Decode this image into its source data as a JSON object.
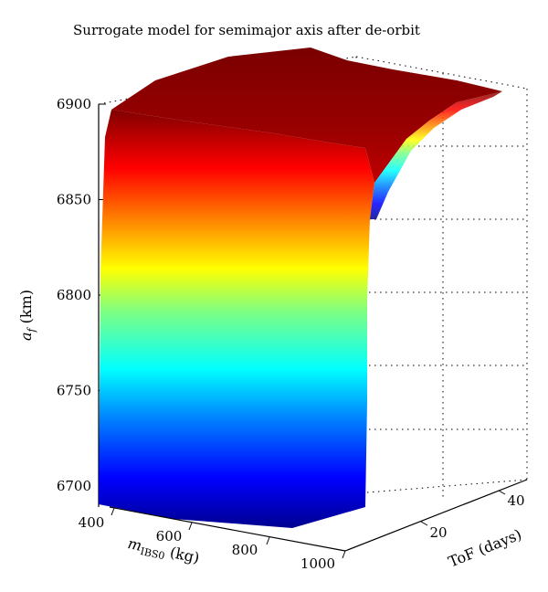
{
  "chart_data": {
    "type": "surface",
    "title": "Surrogate model for semimajor axis after de-orbit",
    "zlabel": {
      "main": "a",
      "sub": "f",
      "rest": " (km)"
    },
    "xlabel": {
      "main": "m",
      "sub": "IBS0",
      "rest": " (kg)"
    },
    "ylabel": "ToF (days)",
    "x_ticks": [
      "400",
      "600",
      "800",
      "1000"
    ],
    "y_ticks": [
      "20",
      "40"
    ],
    "z_ticks": [
      "6700",
      "6750",
      "6800",
      "6850",
      "6900"
    ],
    "z_range": [
      6690,
      6910
    ],
    "colormap": "jet",
    "grid": true
  }
}
